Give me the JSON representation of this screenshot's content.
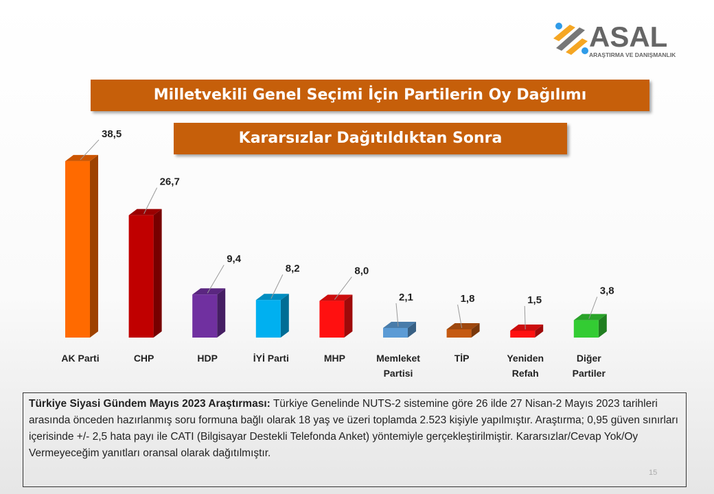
{
  "logo": {
    "text": "ASAL",
    "subtitle": "ARAŞTIRMA VE DANIŞMANLIK"
  },
  "page_number": "15",
  "note": {
    "bold": "Türkiye Siyasi Gündem Mayıs 2023 Araştırması:",
    "text": " Türkiye Genelinde NUTS-2 sistemine göre 26 ilde 27 Nisan-2 Mayıs 2023 tarihleri arasında önceden hazırlanmış soru formuna bağlı olarak 18 yaş ve üzeri toplamda 2.523 kişiyle yapılmıştır. Araştırma; 0,95 güven sınırları içerisinde +/- 2,5 hata payı ile CATI (Bilgisayar Destekli Telefonda Anket) yöntemiyle gerçekleştirilmiştir. Kararsızlar/Cevap Yok/Oy Vermeyeceğim yanıtları oransal olarak dağıtılmıştır."
  },
  "chart_data": {
    "type": "bar",
    "title": "Milletvekili Genel Seçimi İçin Partilerin Oy Dağılımı",
    "subtitle": "Kararsızlar Dağıtıldıktan Sonra",
    "categories": [
      "AK Parti",
      "CHP",
      "HDP",
      "İYİ Parti",
      "MHP",
      "Memleket Partisi",
      "TİP",
      "Yeniden Refah",
      "Diğer Partiler"
    ],
    "values": [
      38.5,
      26.7,
      9.4,
      8.2,
      8.0,
      2.1,
      1.8,
      1.5,
      3.8
    ],
    "labels": [
      "38,5",
      "26,7",
      "9,4",
      "8,2",
      "8,0",
      "2,1",
      "1,8",
      "1,5",
      "3,8"
    ],
    "colors": [
      "#ff6a00",
      "#c00000",
      "#7030a0",
      "#00b0f0",
      "#ff1010",
      "#5b9bd5",
      "#c55a11",
      "#ff1010",
      "#33cc33"
    ],
    "grid": false
  }
}
